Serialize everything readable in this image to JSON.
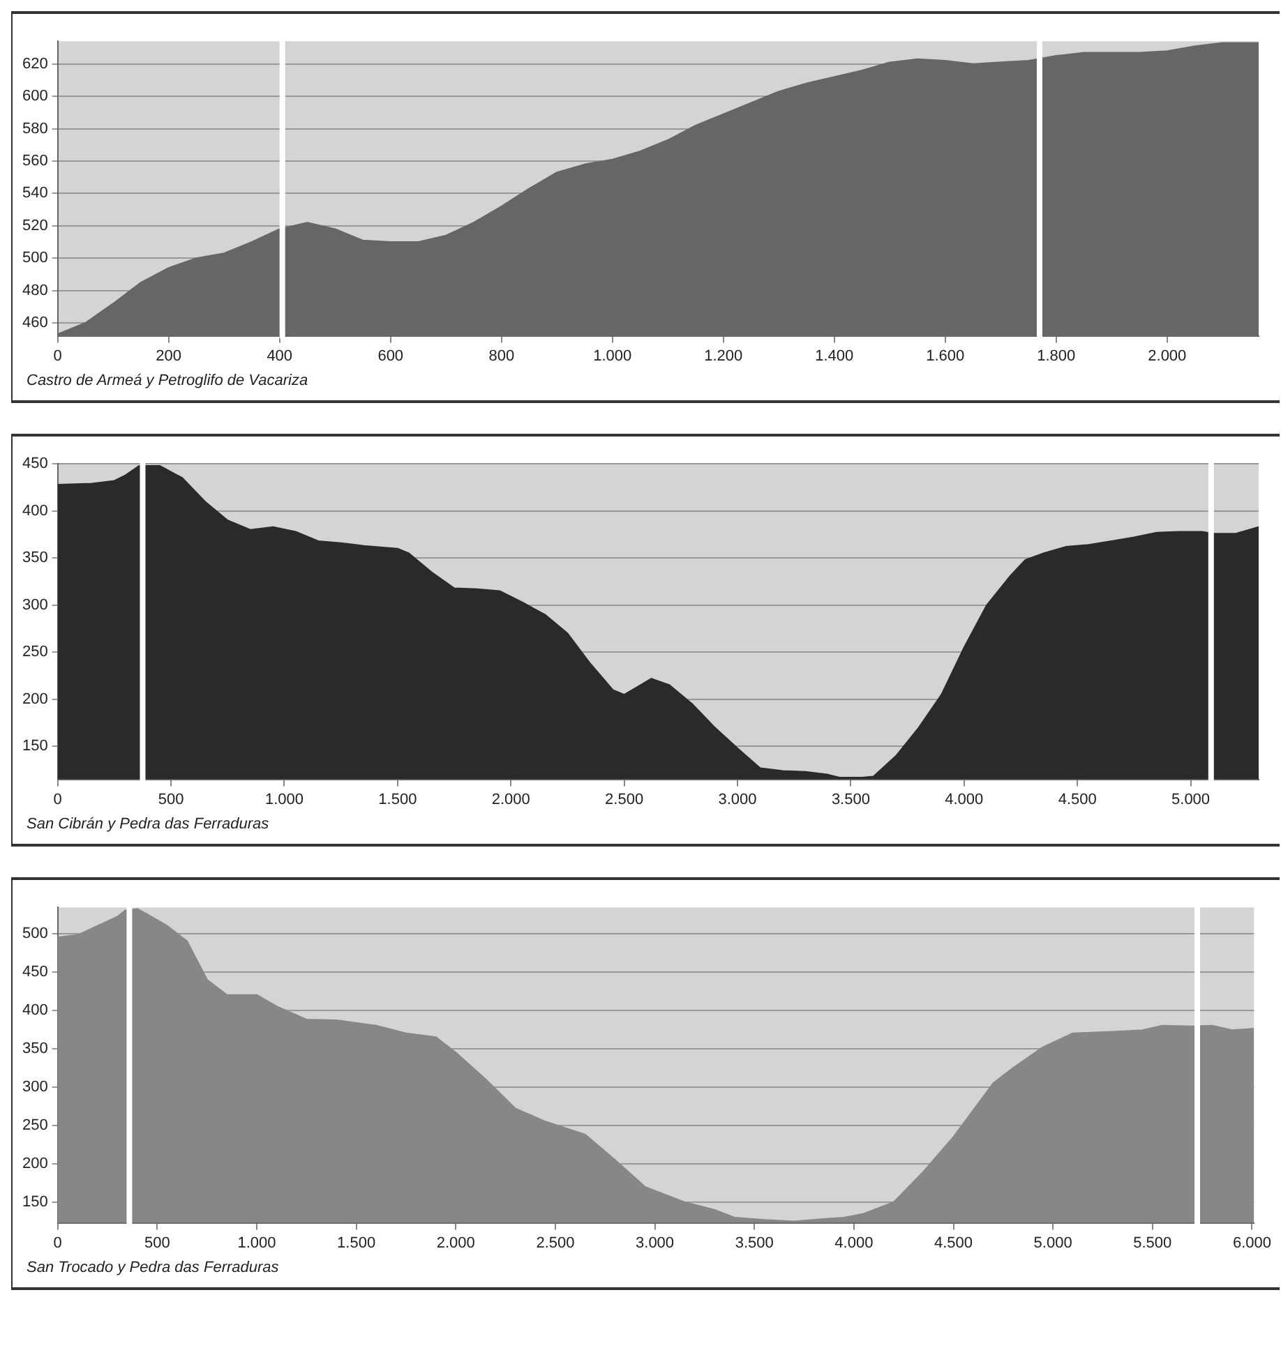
{
  "chart_data": [
    {
      "type": "area",
      "annotations": [
        "Castro de Armeá y Petroglifo de Vacariza"
      ],
      "grid": "y",
      "xlim": [
        0,
        2165
      ],
      "ylim": [
        452,
        634
      ],
      "xticks": [
        0,
        200,
        400,
        600,
        800,
        {
          "value": 1000,
          "label": "1.000"
        },
        {
          "value": 1200,
          "label": "1.200"
        },
        {
          "value": 1400,
          "label": "1.400"
        },
        {
          "value": 1600,
          "label": "1.600"
        },
        {
          "value": 1800,
          "label": "1.800"
        },
        {
          "value": 2000,
          "label": "2.000"
        }
      ],
      "yticks": [
        460,
        480,
        500,
        520,
        540,
        560,
        580,
        600,
        620
      ],
      "ref_lines": [
        {
          "axis": "x",
          "value": 405,
          "color": "#ffffff"
        },
        {
          "axis": "x",
          "value": 1770,
          "color": "#ffffff"
        }
      ],
      "series": [
        {
          "color": "#666666",
          "x": [
            0,
            50,
            100,
            150,
            200,
            250,
            300,
            350,
            400,
            450,
            500,
            550,
            600,
            650,
            700,
            750,
            800,
            850,
            900,
            950,
            1000,
            1050,
            1100,
            1150,
            1200,
            1250,
            1300,
            1350,
            1400,
            1450,
            1500,
            1550,
            1600,
            1650,
            1700,
            1750,
            1800,
            1850,
            1900,
            1950,
            2000,
            2050,
            2100,
            2165
          ],
          "values": [
            453,
            460,
            472,
            485,
            494,
            500,
            503,
            510,
            518,
            522,
            518,
            511,
            510,
            510,
            514,
            522,
            532,
            543,
            553,
            558,
            561,
            566,
            573,
            582,
            589,
            596,
            603,
            608,
            612,
            616,
            621,
            623,
            622,
            620,
            621,
            622,
            625,
            627,
            627,
            627,
            628,
            631,
            633,
            633
          ]
        }
      ]
    },
    {
      "type": "area",
      "annotations": [
        "San Cibrán y Pedra das Ferraduras"
      ],
      "grid": "y",
      "xlim": [
        0,
        5300
      ],
      "ylim": [
        115,
        450
      ],
      "xticks": [
        0,
        500,
        {
          "value": 1000,
          "label": "1.000"
        },
        {
          "value": 1500,
          "label": "1.500"
        },
        {
          "value": 2000,
          "label": "2.000"
        },
        {
          "value": 2500,
          "label": "2.500"
        },
        {
          "value": 3000,
          "label": "3.000"
        },
        {
          "value": 3500,
          "label": "3.500"
        },
        {
          "value": 4000,
          "label": "4.000"
        },
        {
          "value": 4500,
          "label": "4.500"
        },
        {
          "value": 5000,
          "label": "5.000"
        }
      ],
      "yticks": [
        150,
        200,
        250,
        300,
        350,
        400,
        450
      ],
      "ref_lines": [
        {
          "axis": "x",
          "value": 375,
          "color": "#ffffff"
        },
        {
          "axis": "x",
          "value": 5090,
          "color": "#ffffff"
        }
      ],
      "series": [
        {
          "color": "#2a2a2a",
          "x": [
            0,
            150,
            250,
            300,
            360,
            450,
            550,
            650,
            750,
            850,
            950,
            1050,
            1150,
            1250,
            1350,
            1500,
            1550,
            1650,
            1750,
            1850,
            1950,
            2050,
            2150,
            2250,
            2350,
            2450,
            2500,
            2550,
            2620,
            2700,
            2800,
            2900,
            3000,
            3100,
            3200,
            3300,
            3400,
            3450,
            3550,
            3600,
            3700,
            3800,
            3900,
            4000,
            4100,
            4200,
            4270,
            4350,
            4450,
            4550,
            4650,
            4750,
            4850,
            4950,
            5050,
            5100,
            5200,
            5300
          ],
          "values": [
            428,
            429,
            432,
            438,
            448,
            448,
            435,
            410,
            390,
            380,
            383,
            378,
            368,
            366,
            363,
            360,
            355,
            335,
            318,
            317,
            315,
            303,
            290,
            270,
            238,
            210,
            205,
            212,
            222,
            215,
            195,
            170,
            148,
            127,
            124,
            123,
            120,
            117,
            117,
            118,
            140,
            170,
            205,
            255,
            300,
            330,
            348,
            355,
            362,
            364,
            368,
            372,
            377,
            378,
            378,
            376,
            376,
            383
          ]
        }
      ]
    },
    {
      "type": "area",
      "annotations": [
        "San Trocado y Pedra das Ferraduras"
      ],
      "grid": "y",
      "xlim": [
        0,
        6010
      ],
      "ylim": [
        123,
        534
      ],
      "xticks": [
        0,
        500,
        {
          "value": 1000,
          "label": "1.000"
        },
        {
          "value": 1500,
          "label": "1.500"
        },
        {
          "value": 2000,
          "label": "2.000"
        },
        {
          "value": 2500,
          "label": "2.500"
        },
        {
          "value": 3000,
          "label": "3.000"
        },
        {
          "value": 3500,
          "label": "3.500"
        },
        {
          "value": 4000,
          "label": "4.000"
        },
        {
          "value": 4500,
          "label": "4.500"
        },
        {
          "value": 5000,
          "label": "5.000"
        },
        {
          "value": 5500,
          "label": "5.500"
        },
        {
          "value": 6000,
          "label": "6.000"
        }
      ],
      "yticks": [
        150,
        200,
        250,
        300,
        350,
        400,
        450,
        500
      ],
      "ref_lines": [
        {
          "axis": "x",
          "value": 360,
          "color": "#ffffff"
        },
        {
          "axis": "x",
          "value": 5725,
          "color": "#ffffff"
        }
      ],
      "series": [
        {
          "color": "#878787",
          "x": [
            0,
            100,
            200,
            300,
            340,
            400,
            450,
            550,
            650,
            750,
            850,
            1000,
            1100,
            1250,
            1400,
            1600,
            1750,
            1900,
            2000,
            2150,
            2300,
            2450,
            2650,
            2800,
            2950,
            3050,
            3150,
            3300,
            3400,
            3550,
            3700,
            3850,
            3950,
            4050,
            4200,
            4350,
            4500,
            4600,
            4700,
            4800,
            4950,
            5100,
            5300,
            5450,
            5550,
            5700,
            5800,
            5900,
            6010
          ],
          "values": [
            495,
            498,
            510,
            522,
            530,
            532,
            525,
            510,
            490,
            440,
            420,
            420,
            405,
            388,
            387,
            380,
            370,
            365,
            345,
            310,
            272,
            255,
            238,
            205,
            170,
            160,
            150,
            140,
            130,
            127,
            125,
            128,
            130,
            135,
            150,
            190,
            235,
            270,
            305,
            325,
            352,
            370,
            372,
            374,
            380,
            379,
            380,
            374,
            376
          ]
        }
      ]
    }
  ]
}
